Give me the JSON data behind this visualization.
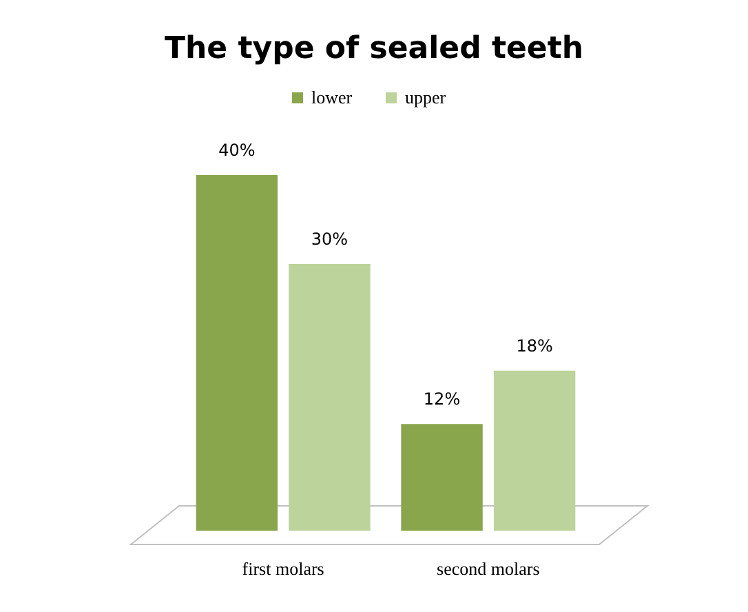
{
  "chart_data": {
    "type": "bar",
    "title": "The type of sealed teeth",
    "categories": [
      "first molars",
      "second molars"
    ],
    "series": [
      {
        "name": "lower",
        "color": "#8aa64c",
        "values": [
          40,
          12
        ],
        "value_labels": [
          "40%",
          "12%"
        ]
      },
      {
        "name": "upper",
        "color": "#bcd39b",
        "values": [
          30,
          18
        ],
        "value_labels": [
          "30%",
          "18%"
        ]
      }
    ],
    "legend": "top"
  }
}
